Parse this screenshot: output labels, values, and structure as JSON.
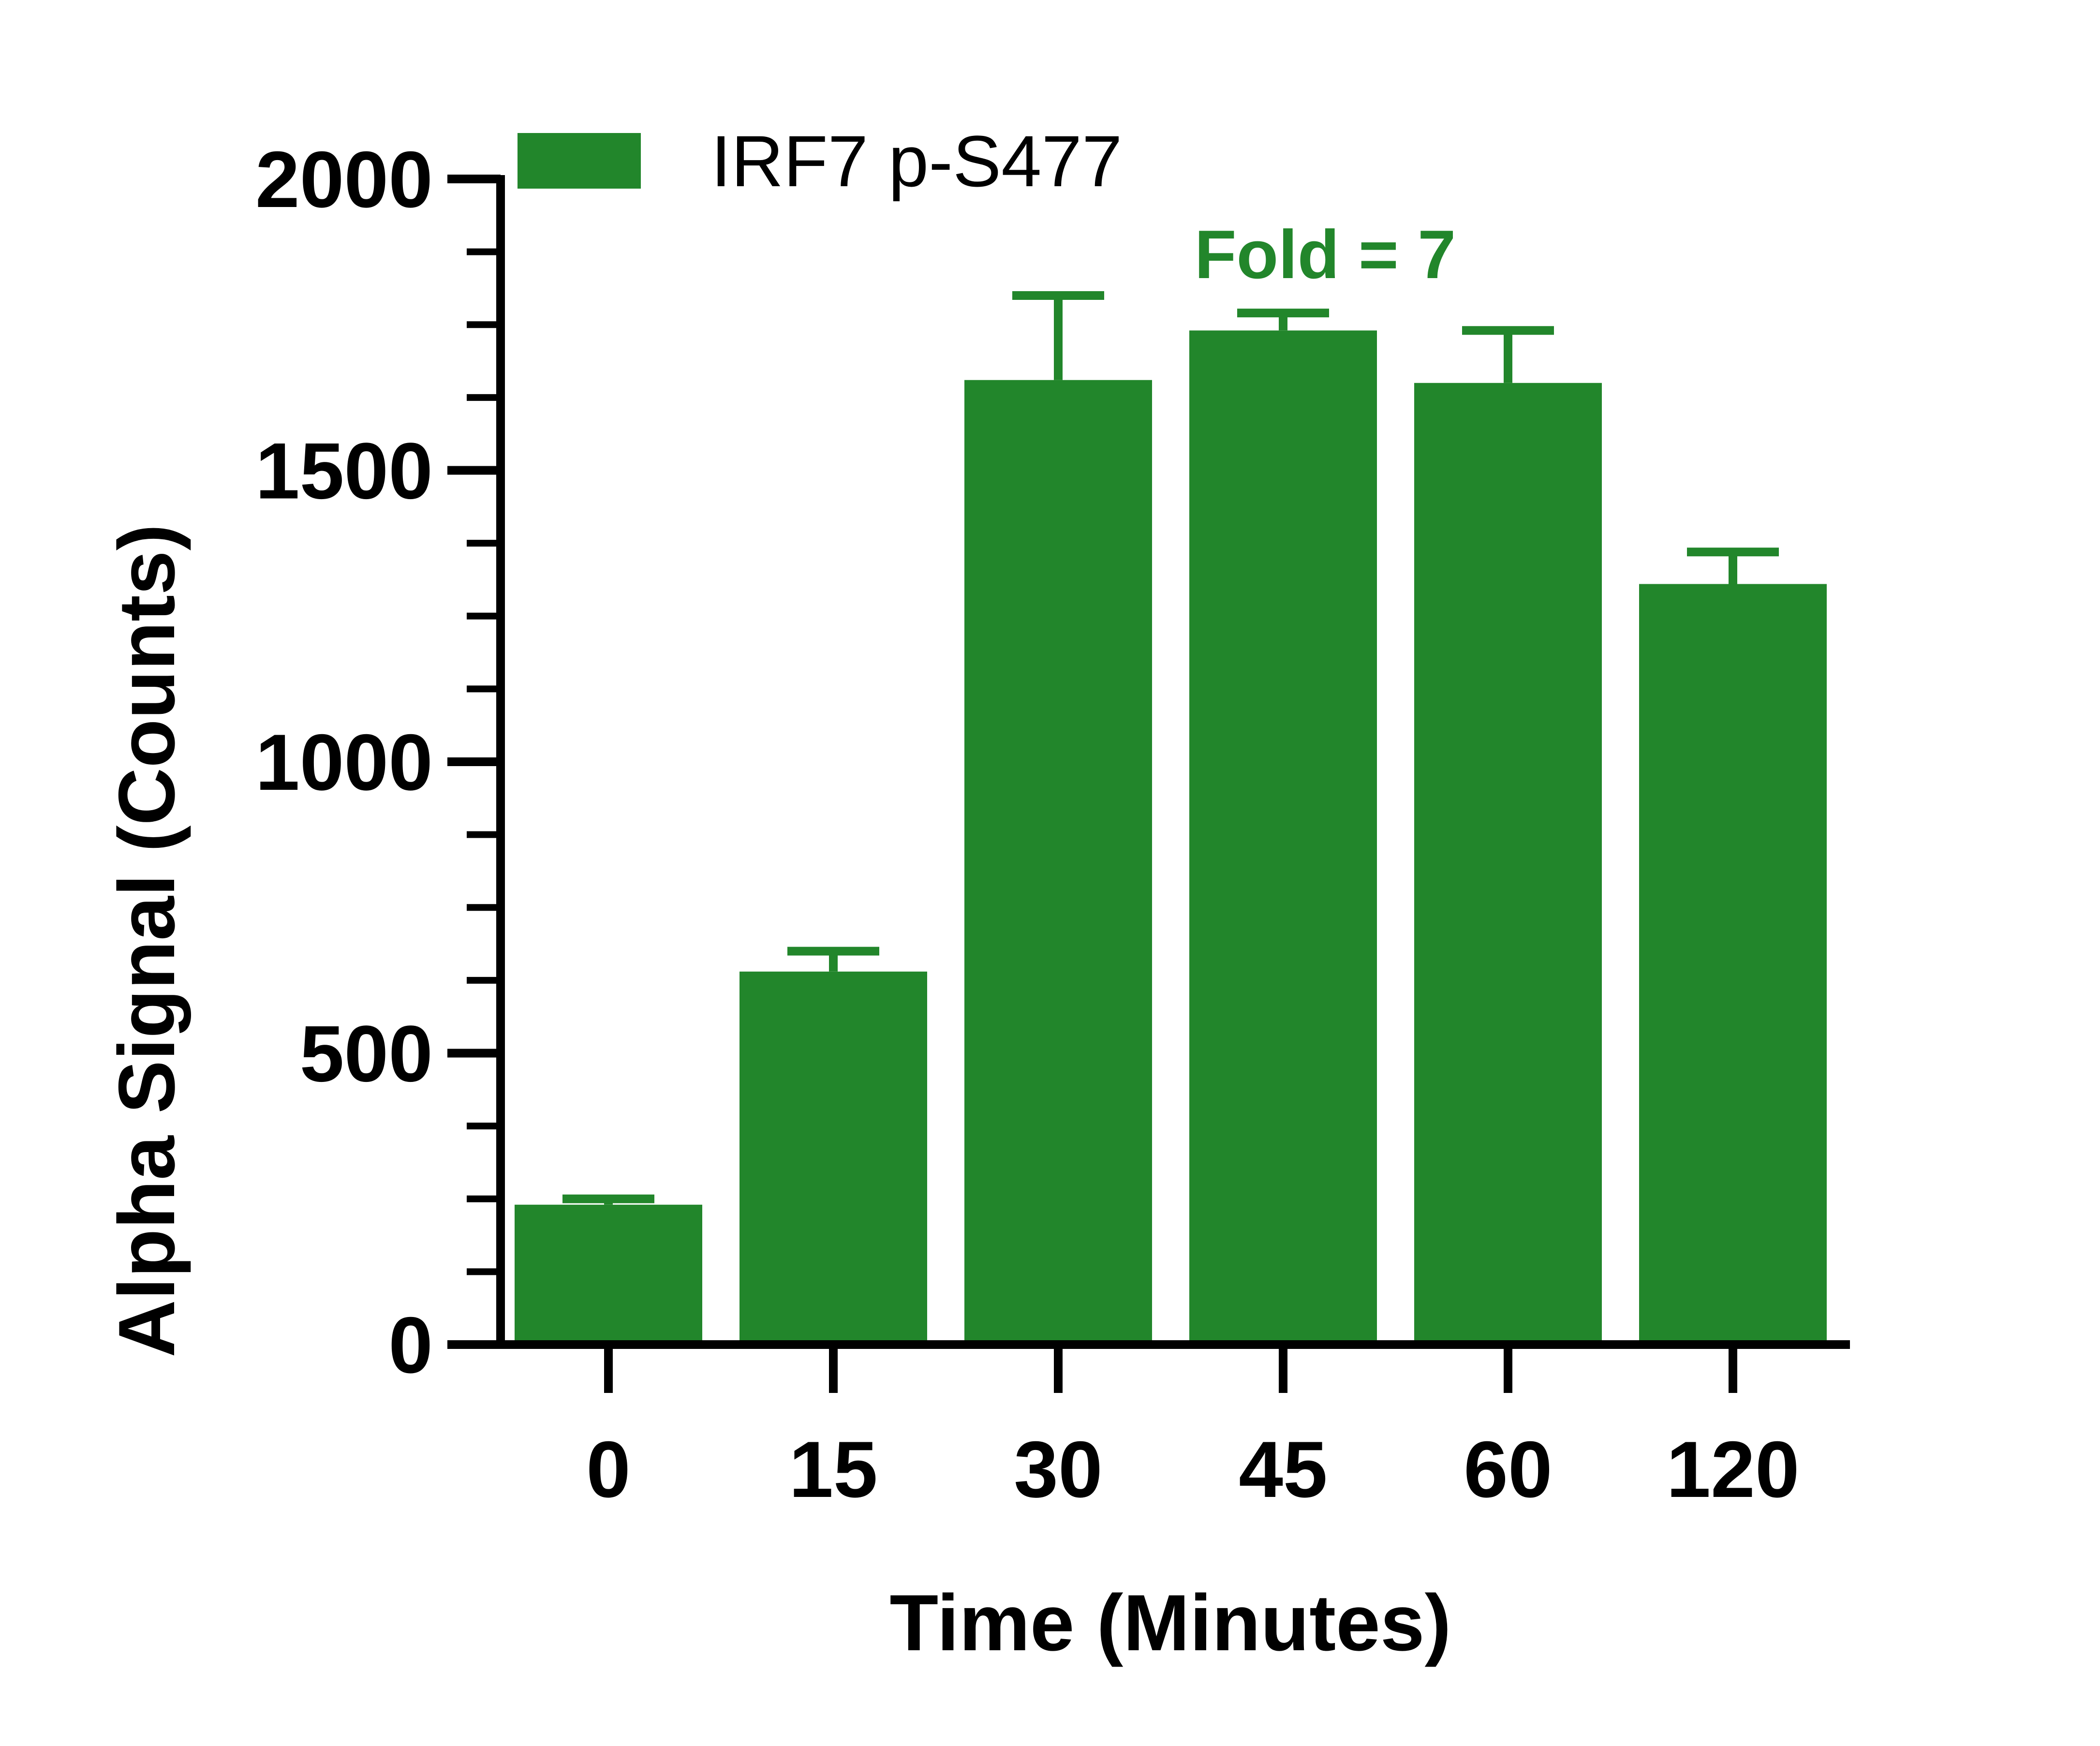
{
  "chart_data": {
    "type": "bar",
    "categories": [
      "0",
      "15",
      "30",
      "45",
      "60",
      "120"
    ],
    "series": [
      {
        "name": "IRF7 p-S477",
        "values": [
          240,
          640,
          1655,
          1740,
          1650,
          1305
        ],
        "errors": [
          10,
          35,
          145,
          30,
          90,
          55
        ]
      }
    ],
    "xlabel": "Time (Minutes)",
    "ylabel": "Alpha Signal (Counts)",
    "ylim": [
      0,
      2000
    ],
    "yticks": [
      0,
      500,
      1000,
      1500,
      2000
    ],
    "minor_tick_step": 125,
    "annotation": "Fold = 7",
    "grid": false,
    "legend_position": "top-left",
    "colors": {
      "bar": "#22862b",
      "axis": "#000000",
      "annotation": "#22862b"
    }
  }
}
